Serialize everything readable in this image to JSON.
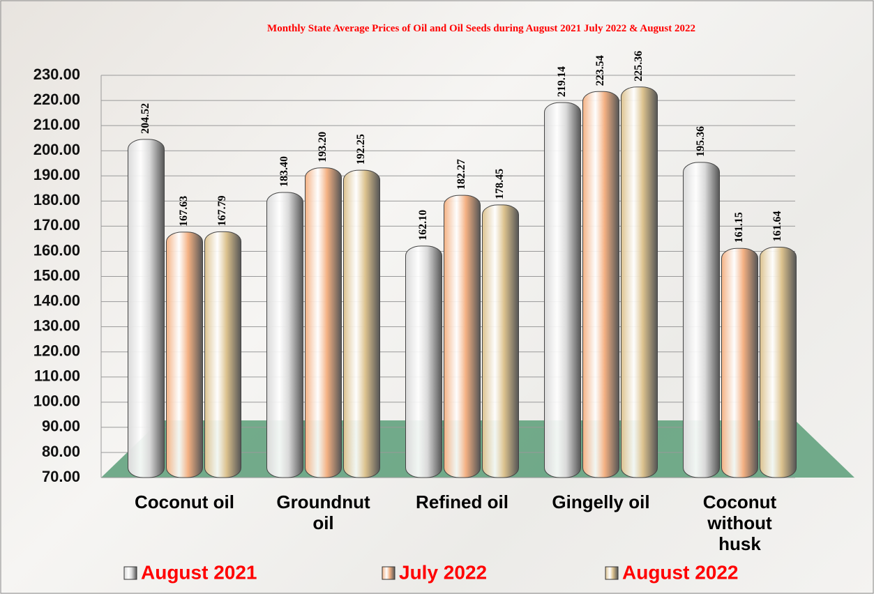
{
  "chart_data": {
    "type": "bar",
    "title": "Monthly State Average Prices of Oil and Oil Seeds during  August 2021  July 2022  &  August  2022",
    "categories": [
      "Coconut oil",
      "Groundnut oil",
      "Refined oil",
      "Gingelly oil",
      "Coconut without husk"
    ],
    "series": [
      {
        "name": "August 2021",
        "color": "#d9d9d9",
        "values": [
          204.52,
          183.4,
          162.1,
          219.14,
          195.36
        ],
        "value_labels": [
          "204.52",
          "183.40",
          "162.10",
          "219.14",
          "195.36"
        ]
      },
      {
        "name": "July 2022",
        "color": "#f4b183",
        "values": [
          167.63,
          193.2,
          182.27,
          223.54,
          161.15
        ],
        "value_labels": [
          "167.63",
          "193.20",
          "182.27",
          "223.54",
          "161.15"
        ]
      },
      {
        "name": "August 2022",
        "color": "#dcc28e",
        "values": [
          167.79,
          192.25,
          178.45,
          225.36,
          161.64
        ],
        "value_labels": [
          "167.79",
          "192.25",
          "178.45",
          "225.36",
          "161.64"
        ]
      }
    ],
    "ylim": [
      70,
      230
    ],
    "yticks": [
      {
        "value": 70,
        "label": "70.00"
      },
      {
        "value": 80,
        "label": "80.00"
      },
      {
        "value": 90,
        "label": "90.00"
      },
      {
        "value": 100,
        "label": "100.00"
      },
      {
        "value": 110,
        "label": "110.00"
      },
      {
        "value": 120,
        "label": "120.00"
      },
      {
        "value": 130,
        "label": "130.00"
      },
      {
        "value": 140,
        "label": "140.00"
      },
      {
        "value": 150,
        "label": "150.00"
      },
      {
        "value": 160,
        "label": "160.00"
      },
      {
        "value": 170,
        "label": "170.00"
      },
      {
        "value": 180,
        "label": "180.00"
      },
      {
        "value": 190,
        "label": "190.00"
      },
      {
        "value": 200,
        "label": "200.00"
      },
      {
        "value": 210,
        "label": "210.00"
      },
      {
        "value": 220,
        "label": "220.00"
      },
      {
        "value": 230,
        "label": "230.00"
      }
    ],
    "grid": true
  }
}
